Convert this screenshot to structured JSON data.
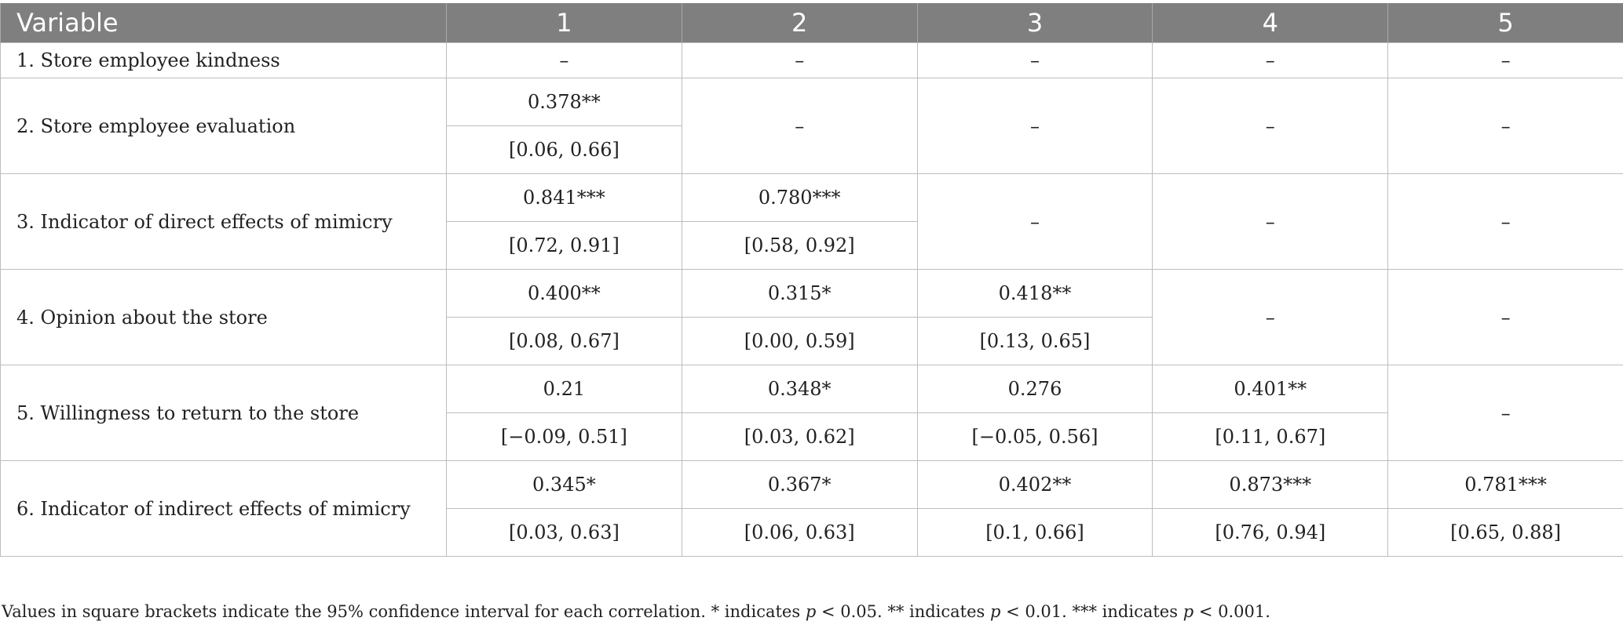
{
  "header": {
    "variable": "Variable",
    "cols": [
      "1",
      "2",
      "3",
      "4",
      "5"
    ]
  },
  "rows": [
    {
      "label": "1. Store employee kindness",
      "dash": "–"
    },
    {
      "label": "2. Store employee evaluation",
      "dash": "–",
      "r": [
        "0.378**"
      ],
      "ci": [
        "[0.06, 0.66]"
      ]
    },
    {
      "label": "3. Indicator of direct effects of mimicry",
      "dash": "–",
      "r": [
        "0.841***",
        "0.780***"
      ],
      "ci": [
        "[0.72, 0.91]",
        "[0.58, 0.92]"
      ]
    },
    {
      "label": "4. Opinion about the store",
      "dash": "–",
      "r": [
        "0.400**",
        "0.315*",
        "0.418**"
      ],
      "ci": [
        "[0.08, 0.67]",
        "[0.00, 0.59]",
        "[0.13, 0.65]"
      ]
    },
    {
      "label": "5. Willingness to return to the store",
      "dash": "–",
      "r": [
        "0.21",
        "0.348*",
        "0.276",
        "0.401**"
      ],
      "ci": [
        "[−0.09, 0.51]",
        "[0.03, 0.62]",
        "[−0.05, 0.56]",
        "[0.11, 0.67]"
      ]
    },
    {
      "label": "6. Indicator of indirect effects of mimicry",
      "r": [
        "0.345*",
        "0.367*",
        "0.402**",
        "0.873***",
        "0.781***"
      ],
      "ci": [
        "[0.03, 0.63]",
        "[0.06, 0.63]",
        "[0.1, 0.66]",
        "[0.76, 0.94]",
        "[0.65, 0.88]"
      ]
    }
  ],
  "note": {
    "t1": "Values in square brackets indicate the 95% confidence interval for each correlation. * indicates ",
    "p": "p",
    "t2": " < 0.05. ** indicates ",
    "t3": " < 0.01. *** indicates ",
    "t4": " < 0.001."
  }
}
